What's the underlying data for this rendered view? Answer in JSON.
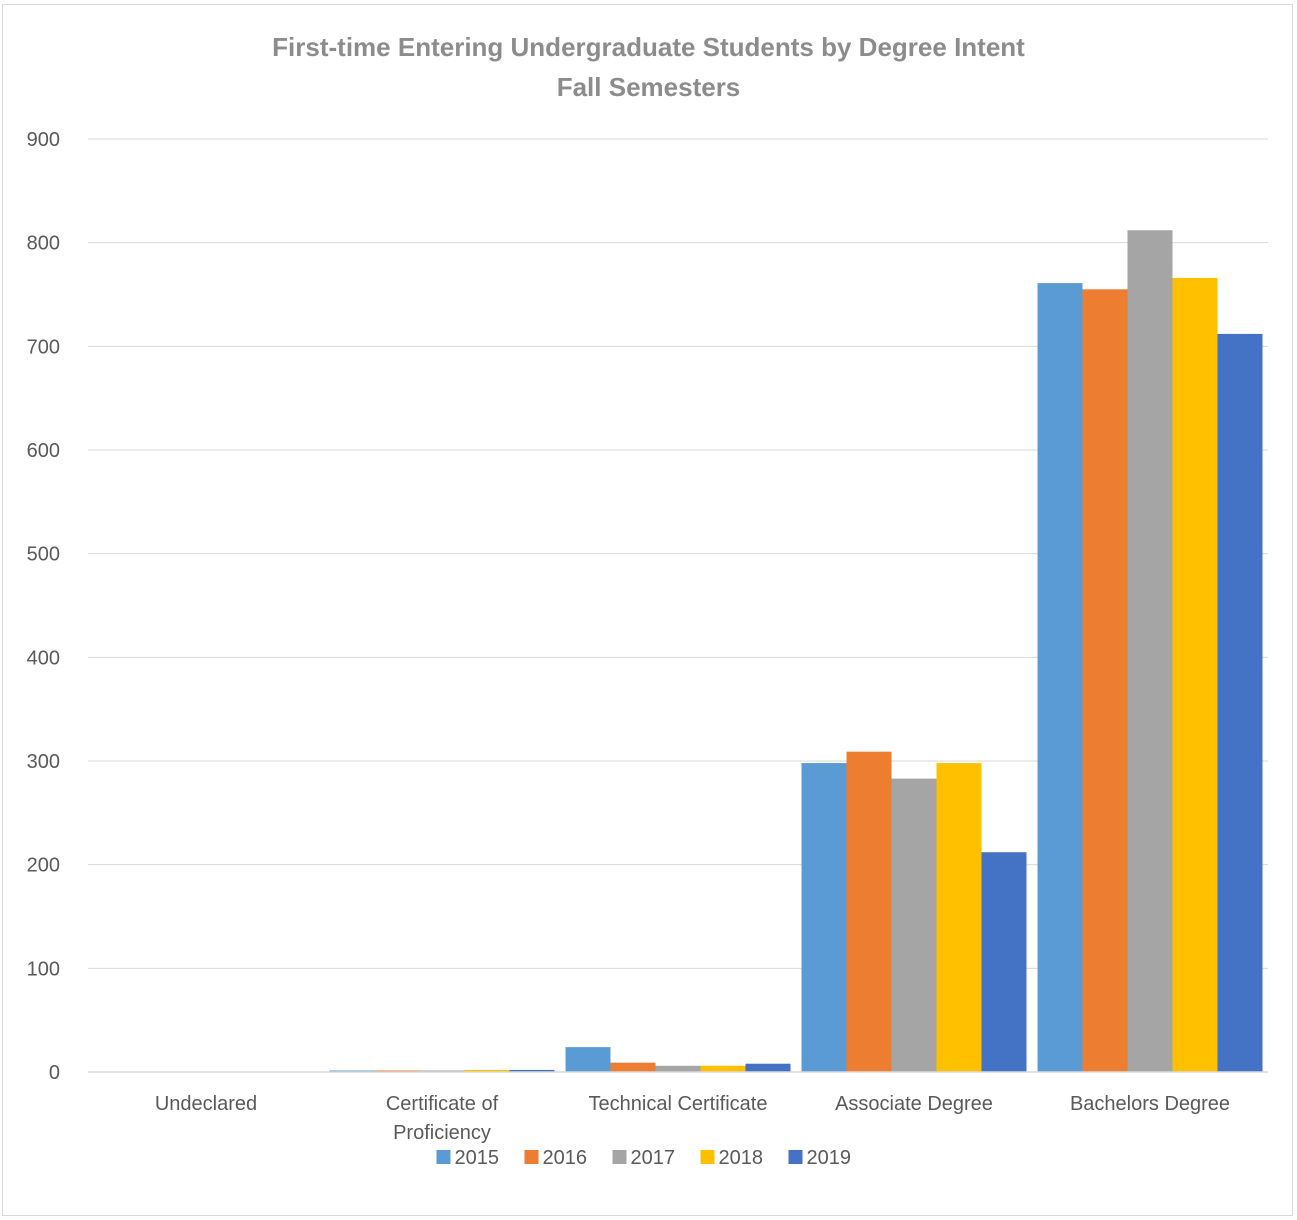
{
  "chart_data": {
    "type": "bar",
    "title": "First-time Entering Undergraduate Students by Degree Intent",
    "subtitle": "Fall Semesters",
    "xlabel": "",
    "ylabel": "",
    "ylim": [
      0,
      900
    ],
    "yticks": [
      0,
      100,
      200,
      300,
      400,
      500,
      600,
      700,
      800,
      900
    ],
    "grid": true,
    "legend_position": "bottom",
    "categories": [
      [
        "Undeclared"
      ],
      [
        "Certificate of",
        "Proficiency"
      ],
      [
        "Technical Certificate"
      ],
      [
        "Associate Degree"
      ],
      [
        "Bachelors Degree"
      ]
    ],
    "series": [
      {
        "name": "2015",
        "color": "#5b9bd5",
        "values": [
          0,
          1,
          24,
          298,
          761
        ]
      },
      {
        "name": "2016",
        "color": "#ed7d31",
        "values": [
          0,
          1,
          9,
          309,
          755
        ]
      },
      {
        "name": "2017",
        "color": "#a5a5a5",
        "values": [
          0,
          1,
          6,
          283,
          812
        ]
      },
      {
        "name": "2018",
        "color": "#ffc000",
        "values": [
          0,
          2,
          6,
          298,
          766
        ]
      },
      {
        "name": "2019",
        "color": "#4472c4",
        "values": [
          0,
          2,
          8,
          212,
          712
        ]
      }
    ]
  }
}
